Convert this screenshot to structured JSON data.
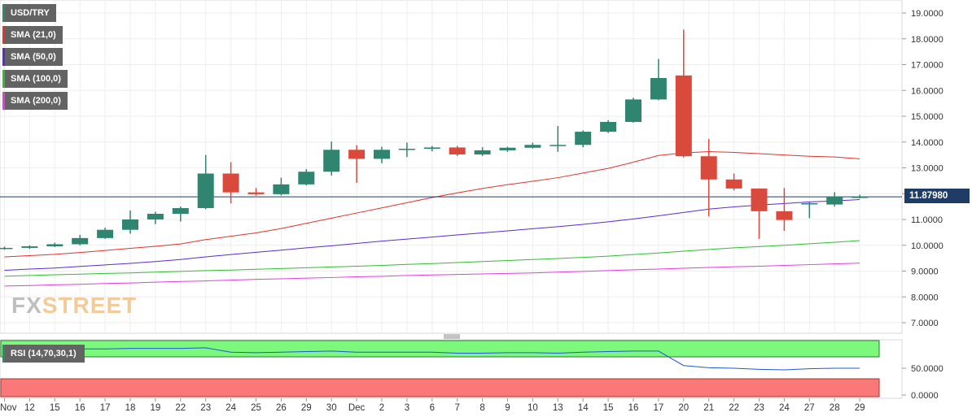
{
  "legend": [
    {
      "label": "USD/TRY",
      "color": "#2a8a6a"
    },
    {
      "label": "SMA (21,0)",
      "color": "#e2332c"
    },
    {
      "label": "SMA (50,0)",
      "color": "#5b2bd6"
    },
    {
      "label": "SMA (100,0)",
      "color": "#2fbf2f"
    },
    {
      "label": "SMA (200,0)",
      "color": "#e43be4"
    }
  ],
  "logo": {
    "part1": "FX",
    "part2": "STREET"
  },
  "price_label": "11.87980",
  "rsi": {
    "label": "RSI (14,70,30,1)",
    "ticks": [
      "50.0000",
      "0.0000"
    ]
  },
  "chart_data": [
    {
      "type": "candlestick",
      "categories": [
        "Nov",
        "12",
        "15",
        "16",
        "17",
        "18",
        "19",
        "22",
        "23",
        "24",
        "25",
        "26",
        "29",
        "30",
        "Dec",
        "2",
        "3",
        "6",
        "7",
        "8",
        "9",
        "10",
        "13",
        "14",
        "15",
        "16",
        "17",
        "20",
        "21",
        "22",
        "23",
        "24",
        "27",
        "28",
        "29"
      ],
      "yticks": [
        "19.0000",
        "18.0000",
        "17.0000",
        "16.0000",
        "15.0000",
        "14.0000",
        "13.0000",
        "12.0000",
        "11.0000",
        "10.0000",
        "9.0000",
        "8.0000",
        "7.0000"
      ],
      "ylim": [
        6.6,
        19.4
      ],
      "last_price": 11.8798,
      "candles": [
        {
          "o": 9.88,
          "h": 9.95,
          "l": 9.83,
          "c": 9.9
        },
        {
          "o": 9.9,
          "h": 10.0,
          "l": 9.86,
          "c": 9.96
        },
        {
          "o": 9.96,
          "h": 10.1,
          "l": 9.93,
          "c": 10.04
        },
        {
          "o": 10.04,
          "h": 10.4,
          "l": 10.0,
          "c": 10.28
        },
        {
          "o": 10.28,
          "h": 10.68,
          "l": 10.25,
          "c": 10.6
        },
        {
          "o": 10.6,
          "h": 11.35,
          "l": 10.45,
          "c": 11.0
        },
        {
          "o": 11.0,
          "h": 11.3,
          "l": 10.82,
          "c": 11.22
        },
        {
          "o": 11.22,
          "h": 11.5,
          "l": 10.92,
          "c": 11.44
        },
        {
          "o": 11.44,
          "h": 13.5,
          "l": 11.4,
          "c": 12.78
        },
        {
          "o": 12.78,
          "h": 13.22,
          "l": 11.62,
          "c": 12.05
        },
        {
          "o": 12.05,
          "h": 12.22,
          "l": 11.92,
          "c": 11.98
        },
        {
          "o": 11.98,
          "h": 12.62,
          "l": 11.93,
          "c": 12.36
        },
        {
          "o": 12.36,
          "h": 12.95,
          "l": 12.32,
          "c": 12.85
        },
        {
          "o": 12.85,
          "h": 14.02,
          "l": 12.7,
          "c": 13.7
        },
        {
          "o": 13.7,
          "h": 13.88,
          "l": 12.42,
          "c": 13.35
        },
        {
          "o": 13.35,
          "h": 13.82,
          "l": 13.18,
          "c": 13.7
        },
        {
          "o": 13.7,
          "h": 13.98,
          "l": 13.42,
          "c": 13.74
        },
        {
          "o": 13.74,
          "h": 13.85,
          "l": 13.64,
          "c": 13.79
        },
        {
          "o": 13.79,
          "h": 13.85,
          "l": 13.46,
          "c": 13.52
        },
        {
          "o": 13.52,
          "h": 13.8,
          "l": 13.46,
          "c": 13.68
        },
        {
          "o": 13.68,
          "h": 13.82,
          "l": 13.62,
          "c": 13.78
        },
        {
          "o": 13.78,
          "h": 13.98,
          "l": 13.75,
          "c": 13.89
        },
        {
          "o": 13.87,
          "h": 14.62,
          "l": 13.62,
          "c": 13.89
        },
        {
          "o": 13.89,
          "h": 14.45,
          "l": 13.8,
          "c": 14.4
        },
        {
          "o": 14.4,
          "h": 14.85,
          "l": 14.35,
          "c": 14.78
        },
        {
          "o": 14.78,
          "h": 15.72,
          "l": 14.75,
          "c": 15.65
        },
        {
          "o": 15.65,
          "h": 17.22,
          "l": 15.62,
          "c": 16.48
        },
        {
          "o": 16.58,
          "h": 18.36,
          "l": 13.4,
          "c": 13.45
        },
        {
          "o": 13.45,
          "h": 14.12,
          "l": 11.12,
          "c": 12.55
        },
        {
          "o": 12.55,
          "h": 12.78,
          "l": 12.12,
          "c": 12.2
        },
        {
          "o": 12.2,
          "h": 12.2,
          "l": 10.25,
          "c": 11.32
        },
        {
          "o": 11.32,
          "h": 12.22,
          "l": 10.56,
          "c": 10.98
        },
        {
          "o": 11.62,
          "h": 11.66,
          "l": 11.05,
          "c": 11.63
        },
        {
          "o": 11.58,
          "h": 12.06,
          "l": 11.5,
          "c": 11.88
        },
        {
          "o": 11.86,
          "h": 11.96,
          "l": 11.82,
          "c": 11.88
        }
      ],
      "sma21": [
        9.55,
        9.6,
        9.65,
        9.72,
        9.8,
        9.88,
        9.96,
        10.05,
        10.22,
        10.35,
        10.48,
        10.65,
        10.85,
        11.05,
        11.25,
        11.45,
        11.65,
        11.85,
        12.03,
        12.2,
        12.35,
        12.48,
        12.62,
        12.8,
        12.98,
        13.22,
        13.48,
        13.58,
        13.63,
        13.6,
        13.55,
        13.5,
        13.45,
        13.42,
        13.35
      ],
      "sma50": [
        9.03,
        9.08,
        9.12,
        9.18,
        9.24,
        9.3,
        9.37,
        9.45,
        9.55,
        9.64,
        9.73,
        9.81,
        9.9,
        9.98,
        10.07,
        10.16,
        10.24,
        10.32,
        10.4,
        10.48,
        10.56,
        10.64,
        10.72,
        10.81,
        10.91,
        11.02,
        11.14,
        11.27,
        11.4,
        11.49,
        11.56,
        11.62,
        11.68,
        11.72,
        11.77
      ],
      "sma100": [
        8.8,
        8.83,
        8.86,
        8.88,
        8.91,
        8.93,
        8.96,
        8.99,
        9.02,
        9.04,
        9.07,
        9.1,
        9.13,
        9.16,
        9.19,
        9.22,
        9.26,
        9.29,
        9.33,
        9.37,
        9.41,
        9.45,
        9.49,
        9.53,
        9.58,
        9.64,
        9.7,
        9.77,
        9.84,
        9.9,
        9.95,
        10.0,
        10.06,
        10.12,
        10.18
      ],
      "sma200": [
        8.42,
        8.44,
        8.47,
        8.49,
        8.52,
        8.54,
        8.57,
        8.6,
        8.62,
        8.65,
        8.68,
        8.7,
        8.73,
        8.75,
        8.78,
        8.8,
        8.83,
        8.85,
        8.87,
        8.89,
        8.91,
        8.93,
        8.96,
        8.99,
        9.02,
        9.05,
        9.08,
        9.11,
        9.14,
        9.17,
        9.19,
        9.22,
        9.25,
        9.28,
        9.31
      ]
    },
    {
      "type": "line",
      "name": "RSI",
      "ylim": [
        0,
        100
      ],
      "overbought": 70,
      "oversold": 30,
      "values": [
        83,
        84,
        85,
        86,
        86,
        87,
        87,
        87,
        88,
        80,
        79,
        80,
        81,
        82,
        80,
        80,
        80,
        80,
        78,
        78,
        79,
        79,
        78,
        80,
        81,
        82,
        82,
        55,
        51,
        50,
        48,
        47,
        49,
        50,
        50
      ]
    }
  ]
}
